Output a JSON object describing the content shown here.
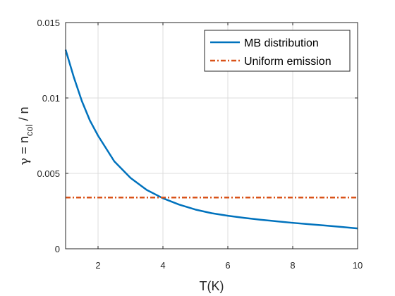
{
  "chart_data": {
    "type": "line",
    "xlabel": "T(K)",
    "ylabel": {
      "gamma": "γ",
      "equals": " = n",
      "sub": "col",
      "rest": " / n"
    },
    "xlim": [
      1,
      10
    ],
    "ylim": [
      0,
      0.015
    ],
    "x_ticks": [
      2,
      4,
      6,
      8,
      10
    ],
    "x_tick_labels": [
      "2",
      "4",
      "6",
      "8",
      "10"
    ],
    "y_ticks": [
      0,
      0.005,
      0.01,
      0.015
    ],
    "y_tick_labels": [
      "0",
      "0.005",
      "0.01",
      "0.015"
    ],
    "grid": true,
    "legend_position": "top-right",
    "series": [
      {
        "name": "MB distribution",
        "style": "solid",
        "color": "#0072BD",
        "x": [
          1.0,
          1.25,
          1.5,
          1.75,
          2.0,
          2.5,
          3.0,
          3.5,
          4.0,
          4.5,
          5.0,
          5.5,
          6.0,
          6.5,
          7.0,
          7.5,
          8.0,
          8.5,
          9.0,
          9.5,
          10.0
        ],
        "y": [
          0.0132,
          0.0114,
          0.0098,
          0.0085,
          0.0075,
          0.0058,
          0.0047,
          0.0039,
          0.00335,
          0.00293,
          0.0026,
          0.00236,
          0.00219,
          0.00205,
          0.00193,
          0.00182,
          0.00172,
          0.00163,
          0.00154,
          0.00145,
          0.00135
        ]
      },
      {
        "name": "Uniform emission",
        "style": "dash-dot",
        "color": "#D95319",
        "x": [
          1,
          10
        ],
        "y": [
          0.0034,
          0.0034
        ]
      }
    ]
  }
}
